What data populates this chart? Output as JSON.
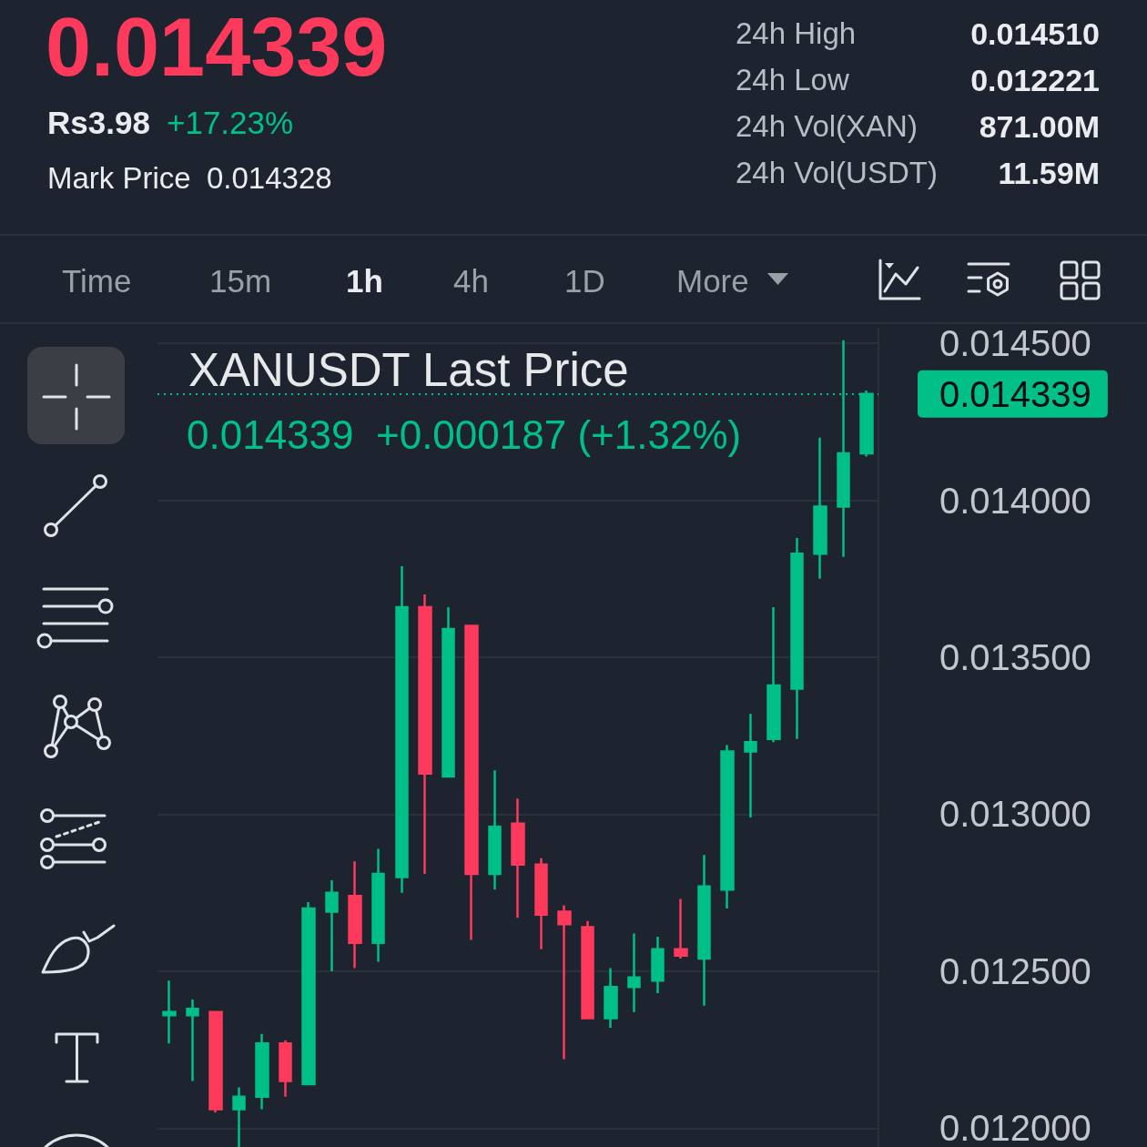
{
  "chart_data": {
    "type": "candlestick",
    "title": "XANUSDT Last Price",
    "subtitle": "0.014339  +0.000187 (+1.32%)",
    "annotations": [
      "0.014339",
      "Rs3.98",
      "+17.23%",
      "Mark Price",
      "0.014328",
      "24h High",
      "0.014510",
      "24h Low",
      "0.012221",
      "24h Vol(XAN)",
      "871.00M",
      "24h Vol(USDT)",
      "11.59M",
      "Time",
      "15m",
      "1h",
      "4h",
      "1D",
      "More"
    ],
    "categories": [
      null,
      null,
      null,
      null,
      null,
      null,
      null,
      null,
      null,
      null,
      null,
      null,
      null,
      null,
      null,
      null,
      null,
      null,
      null,
      null,
      null,
      null,
      null,
      null,
      null,
      null,
      null,
      null,
      null,
      null,
      null
    ],
    "ohlc": [
      [
        0.01236,
        0.01247,
        0.01227,
        0.01237
      ],
      [
        0.01236,
        0.01241,
        0.01215,
        0.01238
      ],
      [
        0.01237,
        0.01237,
        0.01205,
        0.01206
      ],
      [
        0.01206,
        0.01213,
        0.01194,
        0.0121
      ],
      [
        0.0121,
        0.0123,
        0.01206,
        0.01227
      ],
      [
        0.01227,
        0.01228,
        0.0121,
        0.01215
      ],
      [
        0.01214,
        0.01272,
        0.01214,
        0.0127
      ],
      [
        0.01269,
        0.01279,
        0.0125,
        0.01275
      ],
      [
        0.01274,
        0.01285,
        0.01251,
        0.01259
      ],
      [
        0.01259,
        0.01289,
        0.01253,
        0.01281
      ],
      [
        0.0128,
        0.01379,
        0.01275,
        0.01366
      ],
      [
        0.01366,
        0.0137,
        0.01281,
        0.01313
      ],
      [
        0.01312,
        0.01366,
        0.01312,
        0.01359
      ],
      [
        0.0136,
        0.0136,
        0.0126,
        0.01281
      ],
      [
        0.01281,
        0.01314,
        0.01276,
        0.01296
      ],
      [
        0.01297,
        0.01305,
        0.01267,
        0.01284
      ],
      [
        0.01284,
        0.01286,
        0.01257,
        0.01268
      ],
      [
        0.01269,
        0.01271,
        0.01222,
        0.01265
      ],
      [
        0.01264,
        0.01266,
        0.01235,
        0.01235
      ],
      [
        0.01235,
        0.01251,
        0.01232,
        0.01245
      ],
      [
        0.01245,
        0.01262,
        0.01237,
        0.01248
      ],
      [
        0.01247,
        0.01261,
        0.01243,
        0.01257
      ],
      [
        0.01257,
        0.01273,
        0.01254,
        0.01255
      ],
      [
        0.01254,
        0.01287,
        0.01239,
        0.01277
      ],
      [
        0.01276,
        0.01322,
        0.0127,
        0.0132
      ],
      [
        0.0132,
        0.01332,
        0.01299,
        0.01323
      ],
      [
        0.01324,
        0.01366,
        0.01323,
        0.01341
      ],
      [
        0.0134,
        0.01388,
        0.01324,
        0.01383
      ],
      [
        0.01383,
        0.0142,
        0.01375,
        0.01398
      ],
      [
        0.01398,
        0.01451,
        0.01382,
        0.01415
      ],
      [
        0.01415,
        0.01435,
        0.01414,
        0.014339
      ]
    ],
    "colors": [
      "#00c087",
      "#00c087",
      "#fd3a5c",
      "#00c087",
      "#00c087",
      "#fd3a5c",
      "#00c087",
      "#00c087",
      "#fd3a5c",
      "#00c087",
      "#00c087",
      "#fd3a5c",
      "#00c087",
      "#fd3a5c",
      "#00c087",
      "#fd3a5c",
      "#fd3a5c",
      "#fd3a5c",
      "#fd3a5c",
      "#00c087",
      "#00c087",
      "#00c087",
      "#fd3a5c",
      "#00c087",
      "#00c087",
      "#00c087",
      "#00c087",
      "#00c087",
      "#00c087",
      "#00c087",
      "#00c087"
    ],
    "ylim": [
      0.01194,
      0.01455
    ],
    "yticks": [
      {
        "value": 0.012,
        "label": "0.012000"
      },
      {
        "value": 0.0125,
        "label": "0.012500"
      },
      {
        "value": 0.013,
        "label": "0.013000"
      },
      {
        "value": 0.0135,
        "label": "0.013500"
      },
      {
        "value": 0.014,
        "label": "0.014000"
      },
      {
        "value": 0.0145,
        "label": "0.014500"
      }
    ],
    "grid": "y",
    "tick_labels": "y",
    "ref_lines": [
      {
        "axis": "y",
        "value": 0.014339,
        "label": "0.014339",
        "color": "#00c087",
        "line_style": "dotted"
      }
    ]
  }
}
